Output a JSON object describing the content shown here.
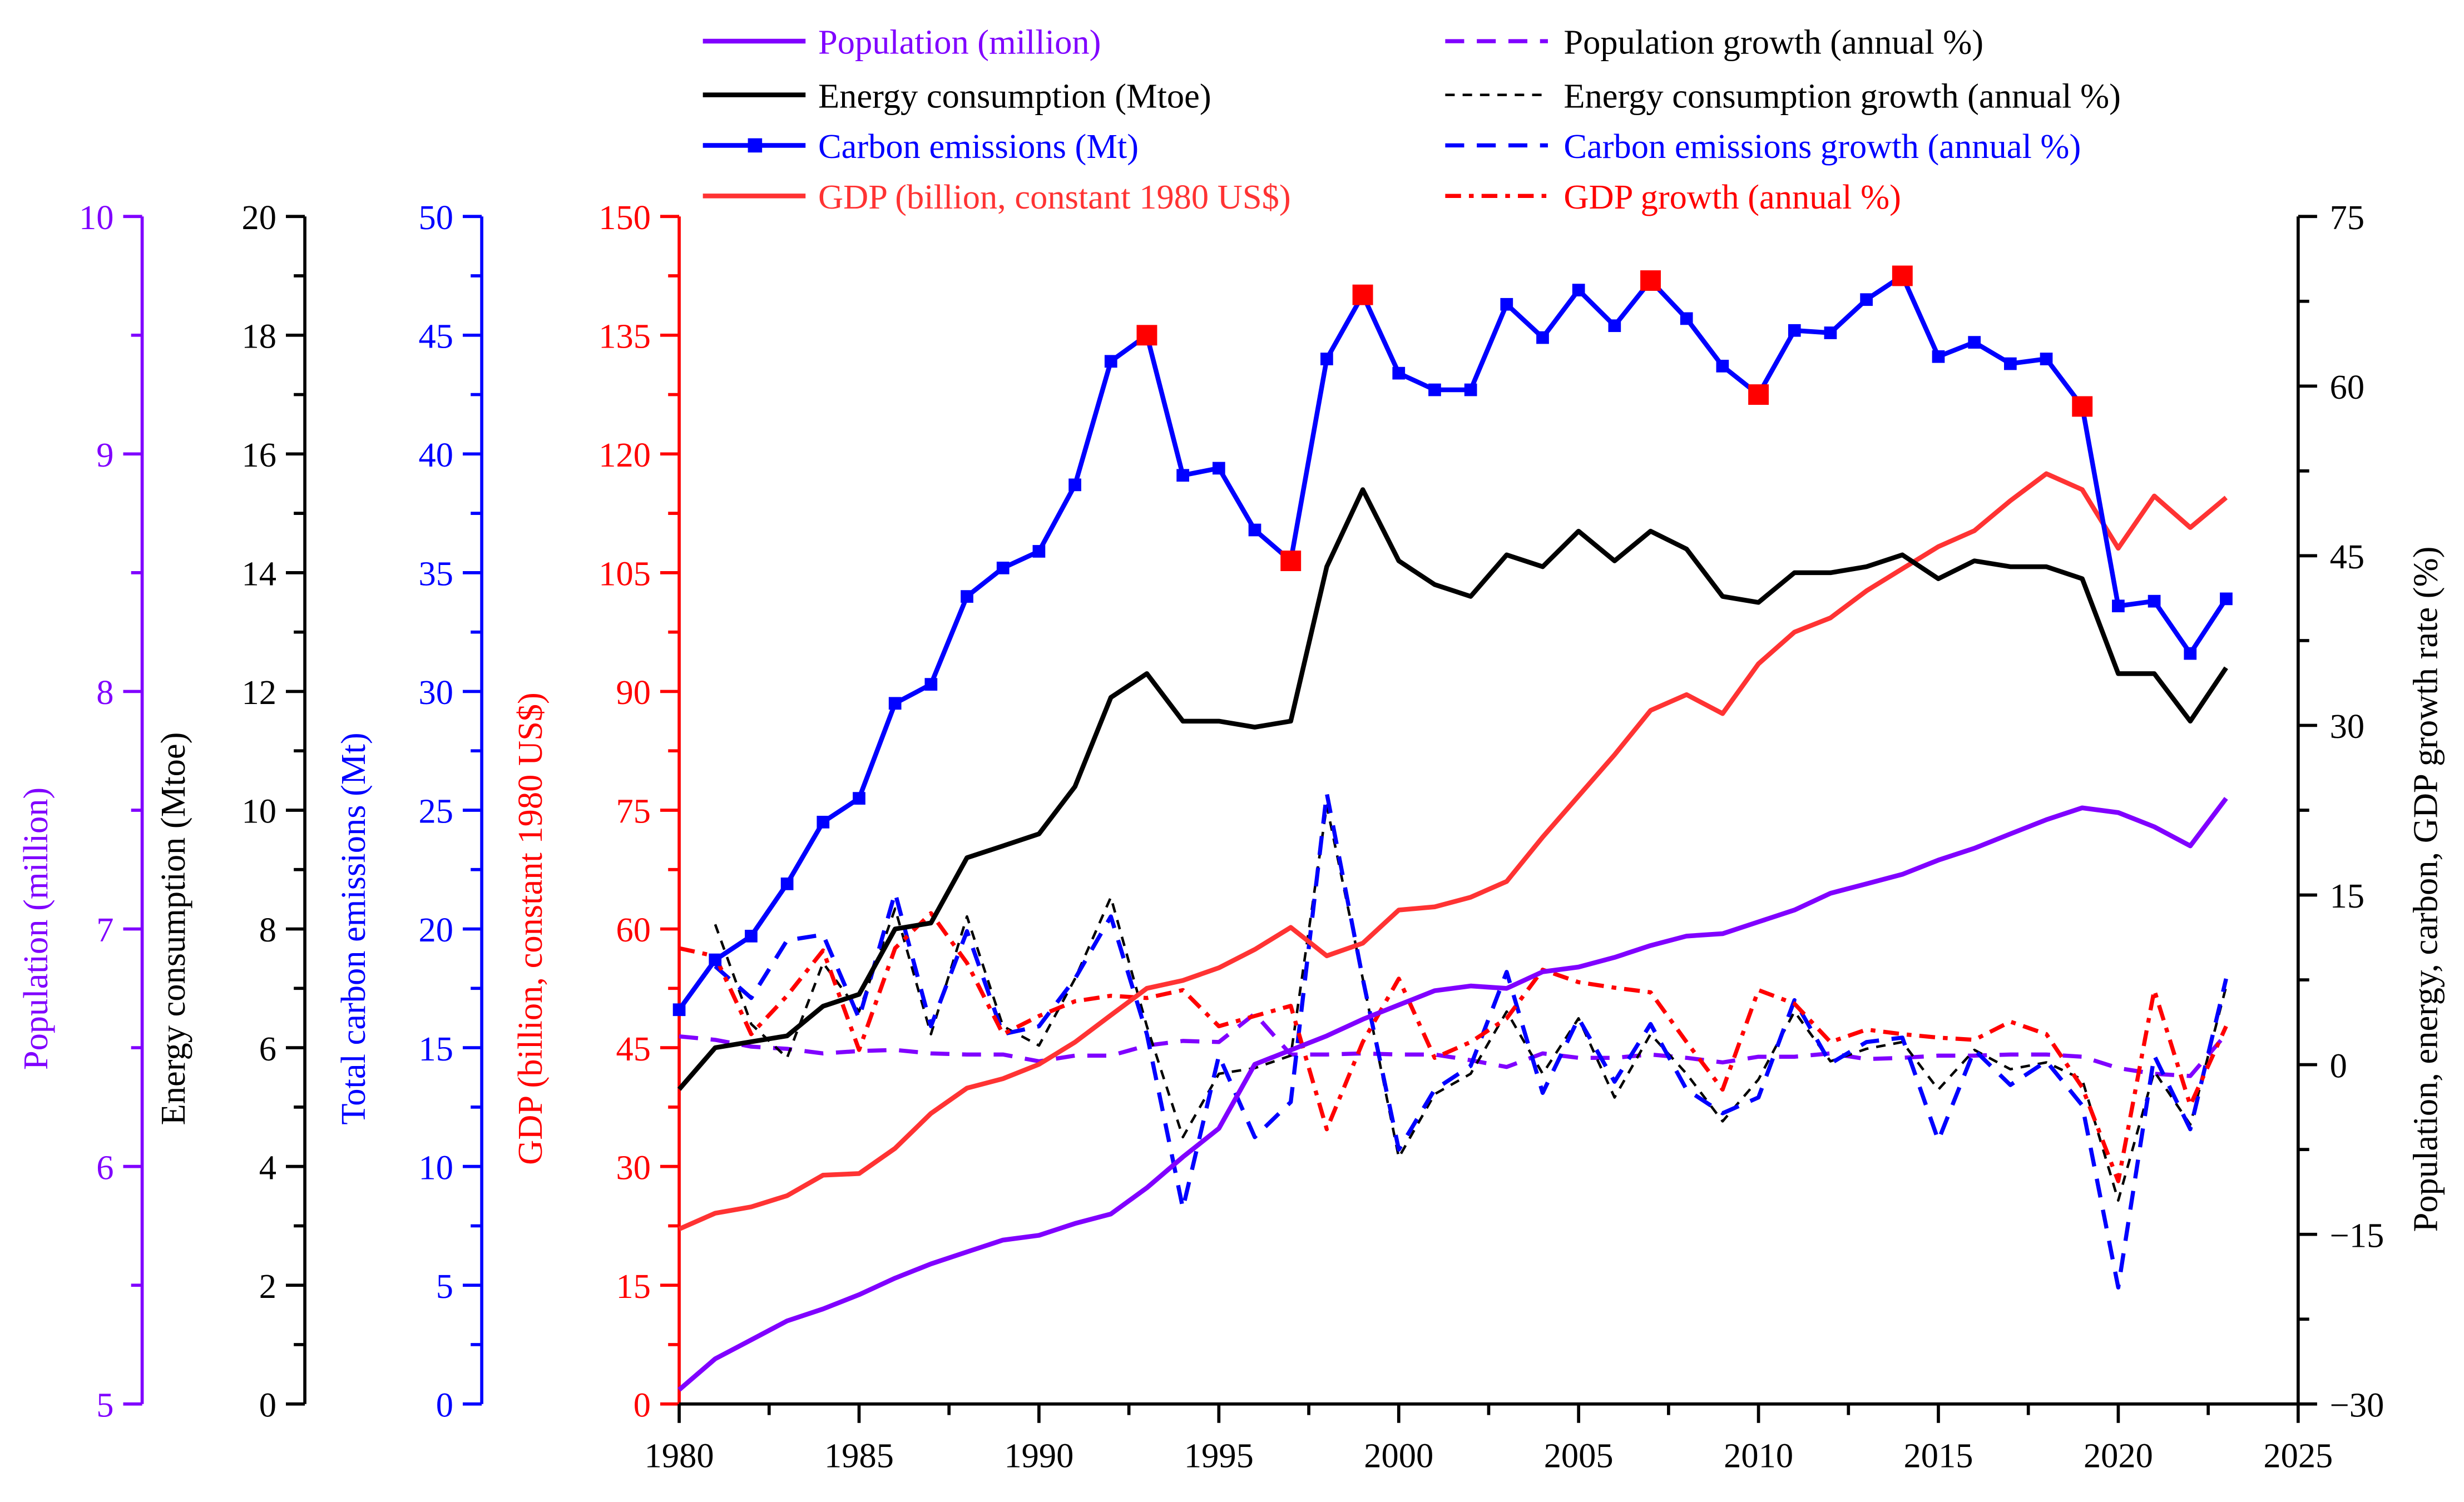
{
  "chart_data": {
    "type": "line",
    "title": "",
    "xlabel": "",
    "x_ticks": [
      "1980",
      "1985",
      "1990",
      "1995",
      "2000",
      "2005",
      "2010",
      "2015",
      "2020",
      "2025"
    ],
    "xlim": [
      1980,
      2025
    ],
    "years": [
      1980,
      1981,
      1982,
      1983,
      1984,
      1985,
      1986,
      1987,
      1988,
      1989,
      1990,
      1991,
      1992,
      1993,
      1994,
      1995,
      1996,
      1997,
      1998,
      1999,
      2000,
      2001,
      2002,
      2003,
      2004,
      2005,
      2006,
      2007,
      2008,
      2009,
      2010,
      2011,
      2012,
      2013,
      2014,
      2015,
      2016,
      2017,
      2018,
      2019,
      2020,
      2021,
      2022,
      2023
    ],
    "axes": {
      "population": {
        "label": "Population (million)",
        "ylim": [
          5,
          10
        ],
        "ticks": [
          "5",
          "6",
          "7",
          "8",
          "9",
          "10"
        ],
        "color": "#8000ff"
      },
      "energy": {
        "label": "Energy consumption (Mtoe)",
        "ylim": [
          0,
          20
        ],
        "ticks": [
          "0",
          "2",
          "4",
          "6",
          "8",
          "10",
          "12",
          "14",
          "16",
          "18",
          "20"
        ],
        "color": "#000000"
      },
      "carbon": {
        "label": "Total carbon emissions (Mt)",
        "ylim": [
          0,
          50
        ],
        "ticks": [
          "0",
          "5",
          "10",
          "15",
          "20",
          "25",
          "30",
          "35",
          "40",
          "45",
          "50"
        ],
        "color": "#0000ff"
      },
      "gdp": {
        "label": "GDP (billion, constant 1980 US$)",
        "ylim": [
          0,
          150
        ],
        "ticks": [
          "0",
          "15",
          "30",
          "45",
          "60",
          "75",
          "90",
          "105",
          "120",
          "135",
          "150"
        ],
        "color": "#ff0000"
      },
      "growth": {
        "label": "Population, energy, carbon, GDP growth rate (%)",
        "ylim": [
          -30,
          75
        ],
        "ticks": [
          "−30",
          "−15",
          "0",
          "15",
          "30",
          "45",
          "60",
          "75"
        ],
        "color": "#000000"
      }
    },
    "series": [
      {
        "name": "Population (million)",
        "axis": "population",
        "style": "solid",
        "color": "#8000ff",
        "values": [
          5.06,
          5.19,
          5.27,
          5.35,
          5.4,
          5.46,
          5.53,
          5.59,
          5.64,
          5.69,
          5.71,
          5.76,
          5.8,
          5.91,
          6.04,
          6.16,
          6.43,
          6.49,
          6.55,
          6.62,
          6.68,
          6.74,
          6.76,
          6.75,
          6.82,
          6.84,
          6.88,
          6.93,
          6.97,
          6.98,
          7.03,
          7.08,
          7.15,
          7.19,
          7.23,
          7.29,
          7.34,
          7.4,
          7.46,
          7.51,
          7.49,
          7.43,
          7.35,
          7.55
        ]
      },
      {
        "name": "Energy consumption (Mtoe)",
        "axis": "energy",
        "style": "solid",
        "color": "#000000",
        "values": [
          5.3,
          6.0,
          6.1,
          6.2,
          6.7,
          6.9,
          8.0,
          8.1,
          9.2,
          9.4,
          9.6,
          10.4,
          11.9,
          12.3,
          11.5,
          11.5,
          11.4,
          11.5,
          14.1,
          15.4,
          14.2,
          13.8,
          13.6,
          14.3,
          14.1,
          14.7,
          14.2,
          14.7,
          14.4,
          13.6,
          13.5,
          14.0,
          14.0,
          14.1,
          14.3,
          13.9,
          14.2,
          14.1,
          14.1,
          13.9,
          12.3,
          12.3,
          11.5,
          12.4
        ]
      },
      {
        "name": "Carbon emissions (Mt)",
        "axis": "carbon",
        "style": "solid-square",
        "color": "#0000ff",
        "highlight_years": [
          1993,
          1997,
          1999,
          2007,
          2010,
          2014,
          2019
        ],
        "highlight_color": "#ff0000",
        "values": [
          16.6,
          18.7,
          19.7,
          21.9,
          24.5,
          25.5,
          29.5,
          30.3,
          34.0,
          35.2,
          35.9,
          38.7,
          43.9,
          45.0,
          39.1,
          39.4,
          36.8,
          35.5,
          44.0,
          46.7,
          43.4,
          42.7,
          42.7,
          46.3,
          44.9,
          46.9,
          45.4,
          47.3,
          45.7,
          43.7,
          42.5,
          45.2,
          45.1,
          46.5,
          47.5,
          44.1,
          44.7,
          43.8,
          44.0,
          42.0,
          33.6,
          33.8,
          31.6,
          33.9
        ]
      },
      {
        "name": "GDP (billion, constant 1980 US$)",
        "axis": "gdp",
        "style": "solid",
        "color": "#ff3333",
        "values": [
          22.1,
          24.1,
          24.9,
          26.3,
          28.9,
          29.1,
          32.3,
          36.7,
          39.9,
          41.1,
          42.9,
          45.7,
          49.1,
          52.5,
          53.5,
          55.1,
          57.4,
          60.2,
          56.6,
          58.2,
          62.4,
          62.8,
          64.0,
          66.0,
          71.6,
          76.8,
          82.0,
          87.6,
          89.6,
          87.2,
          93.5,
          97.5,
          99.3,
          102.7,
          105.5,
          108.3,
          110.3,
          114.1,
          117.5,
          115.5,
          108.1,
          114.7,
          110.7,
          114.5
        ]
      },
      {
        "name": "Population growth (annual %)",
        "axis": "growth",
        "style": "dash",
        "color": "#8000ff",
        "legend_text_color": "#000000",
        "values": [
          2.5,
          2.2,
          1.6,
          1.4,
          1.0,
          1.2,
          1.3,
          1.0,
          0.9,
          0.9,
          0.3,
          0.8,
          0.8,
          1.7,
          2.1,
          2.0,
          4.5,
          0.9,
          0.9,
          1.0,
          0.9,
          0.9,
          0.4,
          -0.2,
          1.0,
          0.6,
          0.6,
          0.9,
          0.6,
          0.2,
          0.7,
          0.7,
          1.0,
          0.5,
          0.6,
          0.8,
          0.8,
          0.9,
          0.9,
          0.7,
          -0.3,
          -0.8,
          -1.0,
          2.7
        ]
      },
      {
        "name": "Energy consumption growth (annual %)",
        "axis": "growth",
        "style": "short-dash",
        "color": "#000000",
        "values": [
          null,
          12.4,
          3.6,
          0.6,
          9.0,
          4.7,
          13.8,
          2.7,
          13.1,
          3.4,
          1.7,
          7.6,
          14.8,
          3.4,
          -6.4,
          -0.8,
          -0.3,
          0.8,
          22.9,
          7.6,
          -8.2,
          -2.6,
          -0.8,
          4.7,
          -0.8,
          4.1,
          -2.9,
          2.7,
          -0.8,
          -5.0,
          -1.3,
          4.7,
          0.3,
          1.4,
          2.0,
          -2.2,
          1.3,
          -0.4,
          0.2,
          -1.3,
          -12.0,
          -0.6,
          -5.3,
          6.9
        ]
      },
      {
        "name": "Carbon emissions growth (annual %)",
        "axis": "growth",
        "style": "dash",
        "color": "#0000ff",
        "values": [
          null,
          8.7,
          5.9,
          11.0,
          11.5,
          4.1,
          15.2,
          3.4,
          11.8,
          2.7,
          3.4,
          7.6,
          13.1,
          2.7,
          -12.7,
          0.8,
          -6.4,
          -3.3,
          24.0,
          7.6,
          -7.5,
          -2.2,
          -0.1,
          8.2,
          -2.5,
          4.1,
          -1.5,
          3.6,
          -2.2,
          -4.3,
          -2.9,
          5.7,
          0.1,
          2.0,
          2.4,
          -6.7,
          1.3,
          -1.8,
          0.3,
          -3.6,
          -19.7,
          0.8,
          -5.7,
          7.6
        ]
      },
      {
        "name": "GDP growth (annual %)",
        "axis": "growth",
        "style": "dash-dot",
        "color": "#ff0000",
        "values": [
          10.3,
          9.6,
          2.7,
          6.1,
          10.1,
          1.3,
          10.3,
          13.4,
          9.0,
          2.7,
          4.3,
          5.6,
          6.1,
          5.9,
          6.6,
          3.4,
          4.3,
          5.2,
          -5.7,
          2.0,
          7.6,
          0.6,
          2.0,
          4.1,
          8.4,
          7.3,
          6.8,
          6.4,
          2.0,
          -2.2,
          6.6,
          5.4,
          2.0,
          3.1,
          2.7,
          2.4,
          2.2,
          3.8,
          2.7,
          -2.0,
          -10.3,
          6.6,
          -3.6,
          3.4
        ]
      }
    ],
    "legend_placement": "top"
  }
}
